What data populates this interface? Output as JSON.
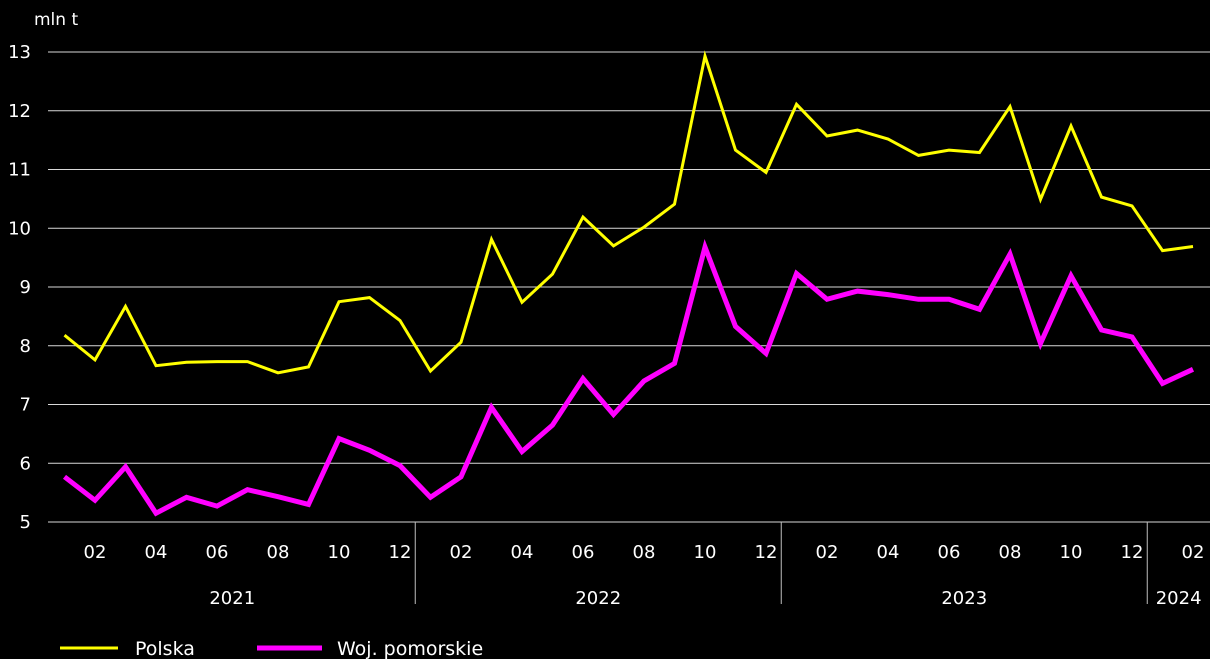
{
  "chart_data": {
    "type": "line",
    "ylabel": "mln t",
    "ylim": [
      5,
      13
    ],
    "yticks": [
      5,
      6,
      7,
      8,
      9,
      10,
      11,
      12,
      13
    ],
    "grid": true,
    "legend_placement": "bottom-left",
    "x": [
      "2021-01",
      "2021-02",
      "2021-03",
      "2021-04",
      "2021-05",
      "2021-06",
      "2021-07",
      "2021-08",
      "2021-09",
      "2021-10",
      "2021-11",
      "2021-12",
      "2022-01",
      "2022-02",
      "2022-03",
      "2022-04",
      "2022-05",
      "2022-06",
      "2022-07",
      "2022-08",
      "2022-09",
      "2022-10",
      "2022-11",
      "2022-12",
      "2023-01",
      "2023-02",
      "2023-03",
      "2023-04",
      "2023-05",
      "2023-06",
      "2023-07",
      "2023-08",
      "2023-09",
      "2023-10",
      "2023-11",
      "2023-12",
      "2024-01",
      "2024-02"
    ],
    "month_tick_labels": [
      "02",
      "04",
      "06",
      "08",
      "10",
      "12"
    ],
    "month_tick_labels_2024": [
      "02"
    ],
    "years": [
      "2021",
      "2022",
      "2023",
      "2024"
    ],
    "series": [
      {
        "name": "Polska",
        "color": "#ffff00",
        "values": [
          8.18,
          7.76,
          8.67,
          7.66,
          7.72,
          7.73,
          7.73,
          7.54,
          7.64,
          8.75,
          8.82,
          8.43,
          7.57,
          8.06,
          9.81,
          8.74,
          9.22,
          10.19,
          9.7,
          10.02,
          10.41,
          12.93,
          11.33,
          10.95,
          12.11,
          11.57,
          11.67,
          11.52,
          11.24,
          11.33,
          11.29,
          12.07,
          10.49,
          11.74,
          10.53,
          10.38,
          9.62,
          9.69
        ]
      },
      {
        "name": "Woj. pomorskie",
        "color": "#ff00ff",
        "values": [
          5.77,
          5.37,
          5.94,
          5.15,
          5.42,
          5.27,
          5.55,
          5.43,
          5.3,
          6.42,
          6.22,
          5.96,
          5.42,
          5.77,
          6.95,
          6.2,
          6.65,
          7.44,
          6.83,
          7.4,
          7.7,
          9.68,
          8.33,
          7.87,
          9.23,
          8.79,
          8.93,
          8.87,
          8.79,
          8.79,
          8.62,
          9.56,
          8.04,
          9.19,
          8.27,
          8.15,
          7.36,
          7.6
        ]
      }
    ]
  }
}
